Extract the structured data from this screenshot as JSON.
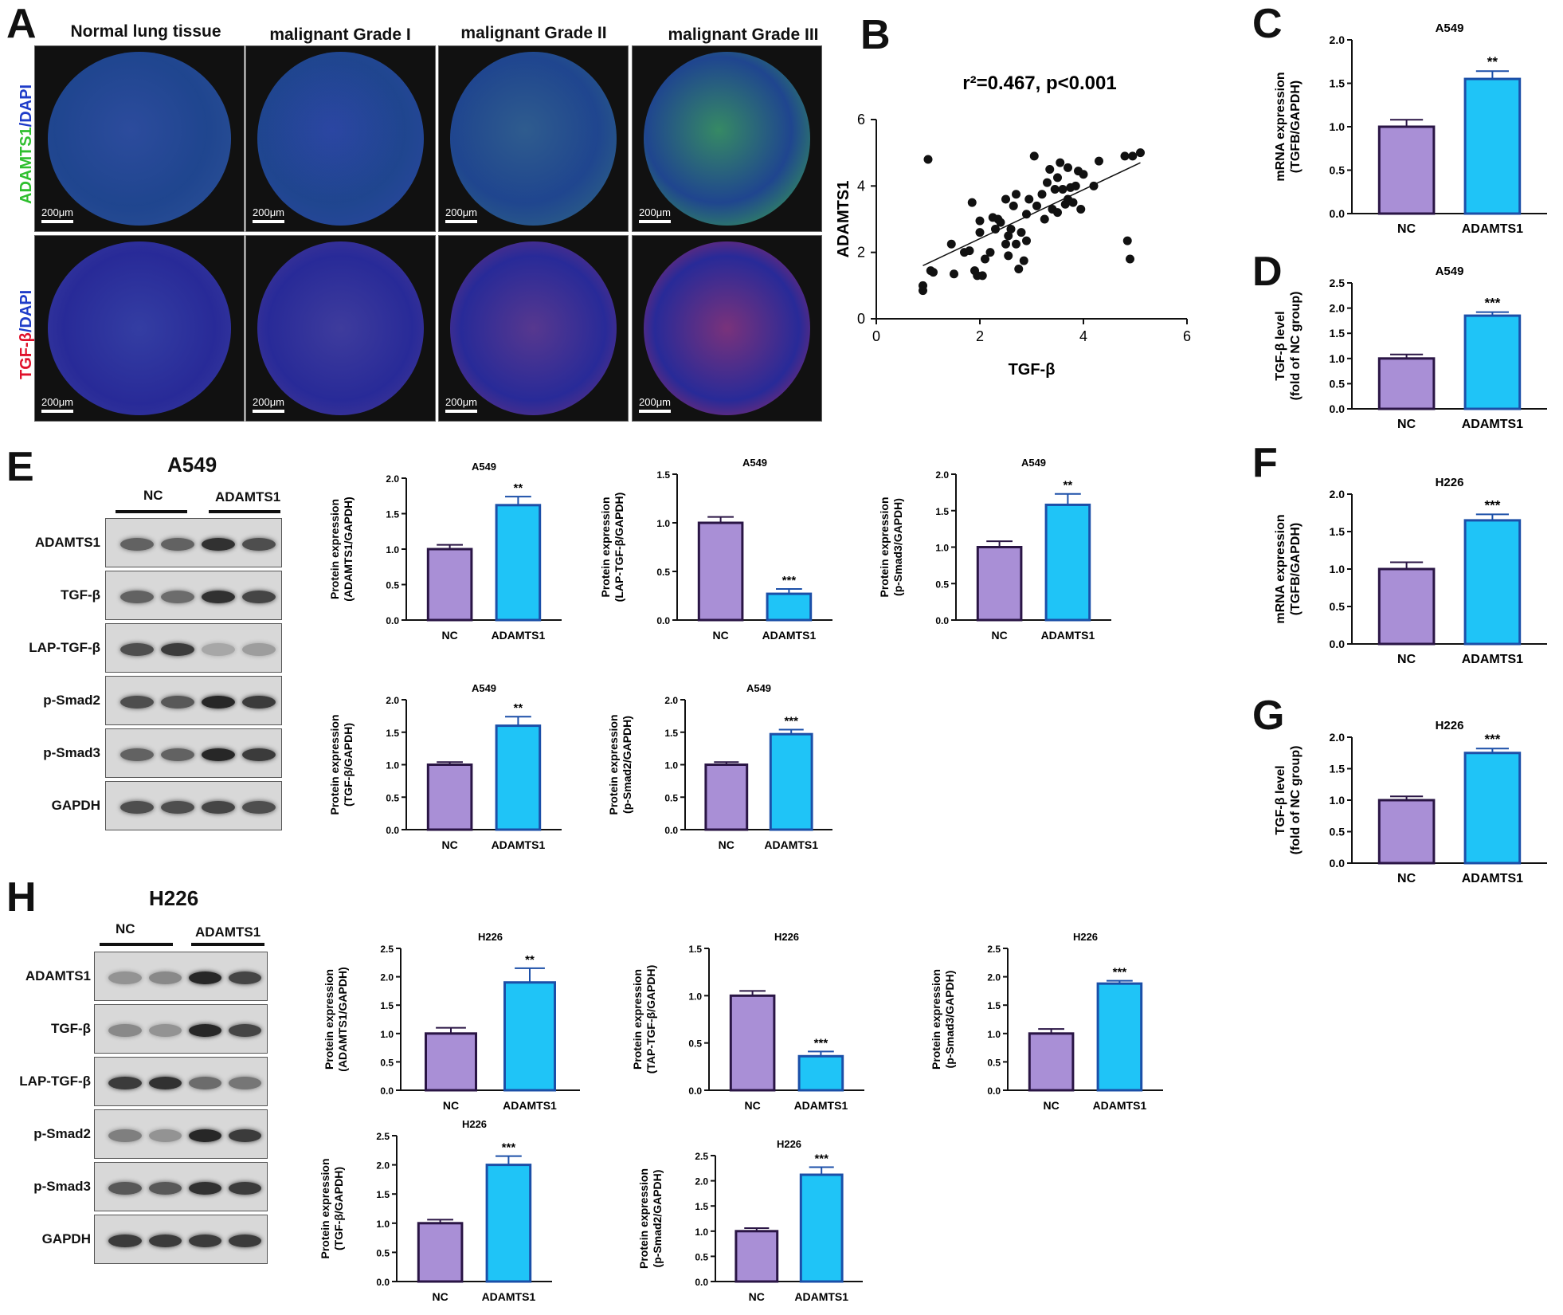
{
  "panel_letters": {
    "A": "A",
    "B": "B",
    "C": "C",
    "D": "D",
    "E": "E",
    "F": "F",
    "G": "G",
    "H": "H"
  },
  "panelA": {
    "columns": [
      "Normal lung tissue",
      "malignant Grade I",
      "malignant Grade II",
      "malignant Grade III"
    ],
    "row1_label": {
      "part1": "ADAMTS1",
      "part2": "/DAPI"
    },
    "row2_label": {
      "part1": "TGF-β",
      "part2": "/DAPI"
    },
    "scale": "200μm",
    "colors": {
      "green": "#3db53d",
      "blue": "#2a3fa8",
      "red": "#d0244a"
    },
    "green_intensity": [
      0.15,
      0.08,
      0.35,
      0.9
    ],
    "red_intensity": [
      0.1,
      0.2,
      0.45,
      0.8
    ]
  },
  "blotE": {
    "title": "A549",
    "groups": [
      "NC",
      "ADAMTS1"
    ],
    "rows": [
      "ADAMTS1",
      "TGF-β",
      "LAP-TGF-β",
      "p-Smad2",
      "p-Smad3",
      "GAPDH"
    ]
  },
  "blotH": {
    "title": "H226",
    "groups": [
      "NC",
      "ADAMTS1"
    ],
    "rows": [
      "ADAMTS1",
      "TGF-β",
      "LAP-TGF-β",
      "p-Smad2",
      "p-Smad3",
      "GAPDH"
    ]
  },
  "colors": {
    "nc": "#a98fd6",
    "nc_edge": "#2a1545",
    "adamts": "#1fc4f7",
    "adamts_edge": "#1b4fa8"
  },
  "chart_data": [
    {
      "id": "B",
      "type": "scatter",
      "title": "r²=0.467, p<0.001",
      "xlabel": "TGF-β",
      "ylabel": "ADAMTS1",
      "xlim": [
        0,
        6
      ],
      "ylim": [
        0,
        6
      ],
      "xticks": [
        0,
        2,
        4,
        6
      ],
      "yticks": [
        0,
        2,
        4,
        6
      ],
      "fit": {
        "x": [
          0.9,
          5.1
        ],
        "y": [
          1.6,
          4.7
        ]
      },
      "points": [
        [
          0.9,
          0.85
        ],
        [
          0.9,
          1.0
        ],
        [
          1.0,
          4.8
        ],
        [
          1.05,
          1.45
        ],
        [
          1.1,
          1.4
        ],
        [
          1.45,
          2.25
        ],
        [
          1.5,
          1.35
        ],
        [
          1.7,
          2.0
        ],
        [
          1.8,
          2.05
        ],
        [
          1.85,
          3.5
        ],
        [
          1.9,
          1.45
        ],
        [
          1.95,
          1.3
        ],
        [
          2.0,
          2.6
        ],
        [
          2.0,
          2.95
        ],
        [
          2.05,
          1.3
        ],
        [
          2.1,
          1.8
        ],
        [
          2.2,
          2.0
        ],
        [
          2.25,
          3.05
        ],
        [
          2.3,
          2.7
        ],
        [
          2.35,
          3.0
        ],
        [
          2.4,
          2.9
        ],
        [
          2.5,
          2.25
        ],
        [
          2.5,
          3.6
        ],
        [
          2.55,
          2.5
        ],
        [
          2.55,
          1.9
        ],
        [
          2.6,
          2.7
        ],
        [
          2.65,
          3.4
        ],
        [
          2.7,
          3.75
        ],
        [
          2.7,
          2.25
        ],
        [
          2.75,
          1.5
        ],
        [
          2.8,
          2.6
        ],
        [
          2.85,
          1.75
        ],
        [
          2.9,
          2.35
        ],
        [
          2.9,
          3.15
        ],
        [
          2.95,
          3.6
        ],
        [
          3.05,
          4.9
        ],
        [
          3.1,
          3.4
        ],
        [
          3.2,
          3.75
        ],
        [
          3.25,
          3.0
        ],
        [
          3.3,
          4.1
        ],
        [
          3.35,
          4.5
        ],
        [
          3.4,
          3.3
        ],
        [
          3.45,
          3.9
        ],
        [
          3.5,
          4.25
        ],
        [
          3.5,
          3.2
        ],
        [
          3.55,
          4.7
        ],
        [
          3.6,
          3.9
        ],
        [
          3.65,
          3.45
        ],
        [
          3.7,
          4.55
        ],
        [
          3.7,
          3.6
        ],
        [
          3.75,
          3.95
        ],
        [
          3.8,
          3.5
        ],
        [
          3.85,
          4.0
        ],
        [
          3.9,
          4.45
        ],
        [
          3.95,
          3.3
        ],
        [
          4.0,
          4.35
        ],
        [
          4.2,
          4.0
        ],
        [
          4.3,
          4.75
        ],
        [
          4.8,
          4.9
        ],
        [
          4.85,
          2.35
        ],
        [
          4.9,
          1.8
        ],
        [
          4.95,
          4.9
        ],
        [
          5.1,
          5.0
        ]
      ]
    },
    {
      "id": "C",
      "type": "bar",
      "categories": [
        "NC",
        "ADAMTS1"
      ],
      "values": [
        1.0,
        1.55
      ],
      "errors": [
        0.08,
        0.09
      ],
      "title": "A549",
      "ylabel_lines": [
        "mRNA expression",
        "(TGFB/GAPDH)"
      ],
      "ylim": [
        0,
        2.0
      ],
      "ystep": 0.5,
      "sig": "**"
    },
    {
      "id": "D",
      "type": "bar",
      "categories": [
        "NC",
        "ADAMTS1"
      ],
      "values": [
        1.0,
        1.85
      ],
      "errors": [
        0.08,
        0.07
      ],
      "title": "A549",
      "ylabel_lines": [
        "TGF-β level",
        "(fold of NC group)"
      ],
      "ylim": [
        0,
        2.5
      ],
      "ystep": 0.5,
      "sig": "***"
    },
    {
      "id": "E1",
      "type": "bar",
      "categories": [
        "NC",
        "ADAMTS1"
      ],
      "values": [
        1.0,
        1.62
      ],
      "errors": [
        0.06,
        0.12
      ],
      "title": "A549",
      "ylabel_lines": [
        "Protein expression",
        "(ADAMTS1/GAPDH)"
      ],
      "ylim": [
        0,
        2.0
      ],
      "ystep": 0.5,
      "sig": "**"
    },
    {
      "id": "E2",
      "type": "bar",
      "categories": [
        "NC",
        "ADAMTS1"
      ],
      "values": [
        1.0,
        0.27
      ],
      "errors": [
        0.06,
        0.05
      ],
      "title": "A549",
      "ylabel_lines": [
        "Protein expression",
        "(LAP-TGF-β/GAPDH)"
      ],
      "ylim": [
        0,
        1.5
      ],
      "ystep": 0.5,
      "sig": "***"
    },
    {
      "id": "E3",
      "type": "bar",
      "categories": [
        "NC",
        "ADAMTS1"
      ],
      "values": [
        1.0,
        1.58
      ],
      "errors": [
        0.08,
        0.15
      ],
      "title": "A549",
      "ylabel_lines": [
        "Protein expression",
        "(p-Smad3/GAPDH)"
      ],
      "ylim": [
        0,
        2.0
      ],
      "ystep": 0.5,
      "sig": "**"
    },
    {
      "id": "E4",
      "type": "bar",
      "categories": [
        "NC",
        "ADAMTS1"
      ],
      "values": [
        1.0,
        1.6
      ],
      "errors": [
        0.04,
        0.14
      ],
      "title": "A549",
      "ylabel_lines": [
        "Protein expression",
        "(TGF-β/GAPDH)"
      ],
      "ylim": [
        0,
        2.0
      ],
      "ystep": 0.5,
      "sig": "**"
    },
    {
      "id": "E5",
      "type": "bar",
      "categories": [
        "NC",
        "ADAMTS1"
      ],
      "values": [
        1.0,
        1.47
      ],
      "errors": [
        0.04,
        0.07
      ],
      "title": "A549",
      "ylabel_lines": [
        "Protein expression",
        "(p-Smad2/GAPDH)"
      ],
      "ylim": [
        0,
        2.0
      ],
      "ystep": 0.5,
      "sig": "***"
    },
    {
      "id": "F",
      "type": "bar",
      "categories": [
        "NC",
        "ADAMTS1"
      ],
      "values": [
        1.0,
        1.65
      ],
      "errors": [
        0.09,
        0.08
      ],
      "title": "H226",
      "ylabel_lines": [
        "mRNA expression",
        "(TGFB/GAPDH)"
      ],
      "ylim": [
        0,
        2.0
      ],
      "ystep": 0.5,
      "sig": "***"
    },
    {
      "id": "G",
      "type": "bar",
      "categories": [
        "NC",
        "ADAMTS1"
      ],
      "values": [
        1.0,
        1.75
      ],
      "errors": [
        0.06,
        0.07
      ],
      "title": "H226",
      "ylabel_lines": [
        "TGF-β level",
        "(fold of NC group)"
      ],
      "ylim": [
        0,
        2.0
      ],
      "ystep": 0.5,
      "sig": "***"
    },
    {
      "id": "H1",
      "type": "bar",
      "categories": [
        "NC",
        "ADAMTS1"
      ],
      "values": [
        1.0,
        1.9
      ],
      "errors": [
        0.1,
        0.25
      ],
      "title": "H226",
      "ylabel_lines": [
        "Protein expression",
        "(ADAMTS1/GAPDH)"
      ],
      "ylim": [
        0,
        2.5
      ],
      "ystep": 0.5,
      "sig": "**"
    },
    {
      "id": "H2",
      "type": "bar",
      "categories": [
        "NC",
        "ADAMTS1"
      ],
      "values": [
        1.0,
        0.36
      ],
      "errors": [
        0.05,
        0.05
      ],
      "title": "H226",
      "ylabel_lines": [
        "Protein expression",
        "(TAP-TGF-β/GAPDH)"
      ],
      "ylim": [
        0,
        1.5
      ],
      "ystep": 0.5,
      "sig": "***"
    },
    {
      "id": "H3",
      "type": "bar",
      "categories": [
        "NC",
        "ADAMTS1"
      ],
      "values": [
        1.0,
        1.88
      ],
      "errors": [
        0.08,
        0.05
      ],
      "title": "H226",
      "ylabel_lines": [
        "Protein expression",
        "(p-Smad3/GAPDH)"
      ],
      "ylim": [
        0,
        2.5
      ],
      "ystep": 0.5,
      "sig": "***"
    },
    {
      "id": "H4",
      "type": "bar",
      "categories": [
        "NC",
        "ADAMTS1"
      ],
      "values": [
        1.0,
        2.0
      ],
      "errors": [
        0.06,
        0.15
      ],
      "title": "H226",
      "ylabel_lines": [
        "Protein expression",
        "(TGF-β/GAPDH)"
      ],
      "ylim": [
        0,
        2.5
      ],
      "ystep": 0.5,
      "sig": "***"
    },
    {
      "id": "H5",
      "type": "bar",
      "categories": [
        "NC",
        "ADAMTS1"
      ],
      "values": [
        1.0,
        2.12
      ],
      "errors": [
        0.06,
        0.15
      ],
      "title": "H226",
      "ylabel_lines": [
        "Protein expression",
        "(p-Smad2/GAPDH)"
      ],
      "ylim": [
        0,
        2.5
      ],
      "ystep": 0.5,
      "sig": "***"
    }
  ]
}
